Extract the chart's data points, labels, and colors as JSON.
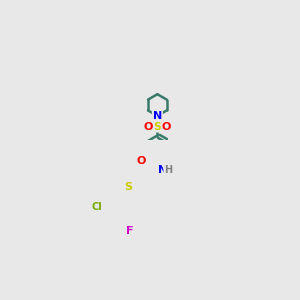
{
  "background_color": "#e8e8e8",
  "bond_color": "#3a7a6a",
  "atom_colors": {
    "N": "#0000ff",
    "O": "#ff0000",
    "S": "#cccc00",
    "Cl": "#7aaa00",
    "F": "#cc00cc",
    "H": "#808080",
    "C": "#3a7a6a"
  },
  "fig_width": 3.0,
  "fig_height": 3.0,
  "dpi": 100
}
